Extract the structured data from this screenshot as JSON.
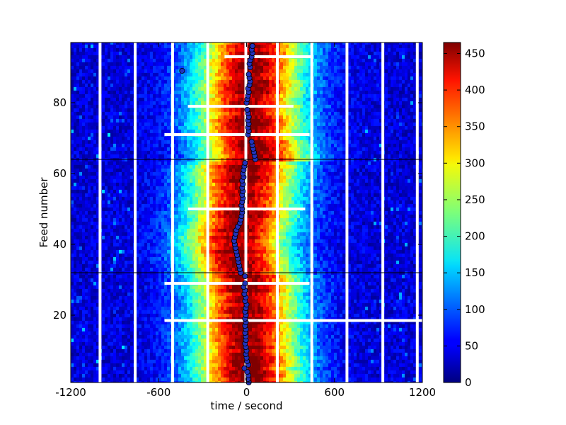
{
  "chart_data": {
    "type": "heatmap",
    "title": "",
    "xlabel": "time / second",
    "ylabel": "Feed number",
    "xlim": [
      -1200,
      1200
    ],
    "ylim": [
      1,
      97
    ],
    "x_ticks": [
      {
        "value": -1200,
        "label": "-1200"
      },
      {
        "value": -600,
        "label": "-600"
      },
      {
        "value": 0,
        "label": "0"
      },
      {
        "value": 600,
        "label": "600"
      },
      {
        "value": 1200,
        "label": "1200"
      }
    ],
    "y_ticks": [
      {
        "value": 20,
        "label": "20"
      },
      {
        "value": 40,
        "label": "40"
      },
      {
        "value": 60,
        "label": "60"
      },
      {
        "value": 80,
        "label": "80"
      }
    ],
    "colorbar": {
      "colormap": "jet",
      "range": [
        0,
        465
      ],
      "ticks": [
        {
          "value": 0,
          "label": "0"
        },
        {
          "value": 50,
          "label": "50"
        },
        {
          "value": 100,
          "label": "100"
        },
        {
          "value": 150,
          "label": "150"
        },
        {
          "value": 200,
          "label": "200"
        },
        {
          "value": 250,
          "label": "250"
        },
        {
          "value": 300,
          "label": "300"
        },
        {
          "value": 350,
          "label": "350"
        },
        {
          "value": 400,
          "label": "400"
        },
        {
          "value": 450,
          "label": "450"
        }
      ]
    },
    "white_gap_times": [
      -1000,
      -760,
      -505,
      -265,
      -5,
      210,
      445,
      685,
      930,
      1165
    ],
    "missing_rows": [
      {
        "feed": 18.5,
        "xfrom": -560,
        "xto": 1200
      },
      {
        "feed": 29,
        "xfrom": -560,
        "xto": 430
      },
      {
        "feed": 50,
        "xfrom": -400,
        "xto": 400
      },
      {
        "feed": 71,
        "xfrom": -560,
        "xto": 430
      },
      {
        "feed": 79,
        "xfrom": -400,
        "xto": 320
      },
      {
        "feed": 93,
        "xfrom": -150,
        "xto": 450
      }
    ],
    "group_boundaries": [
      32,
      64
    ],
    "peak_series": {
      "name": "",
      "color": "#2233bb",
      "points": [
        {
          "feed": 1,
          "time": 15
        },
        {
          "feed": 2,
          "time": 10
        },
        {
          "feed": 3,
          "time": 12
        },
        {
          "feed": 4,
          "time": 5
        },
        {
          "feed": 5,
          "time": -15
        },
        {
          "feed": 6,
          "time": 12
        },
        {
          "feed": 7,
          "time": 3
        },
        {
          "feed": 8,
          "time": 0
        },
        {
          "feed": 9,
          "time": -5
        },
        {
          "feed": 10,
          "time": 0
        },
        {
          "feed": 11,
          "time": -5
        },
        {
          "feed": 12,
          "time": -10
        },
        {
          "feed": 13,
          "time": -5
        },
        {
          "feed": 14,
          "time": -5
        },
        {
          "feed": 15,
          "time": -10
        },
        {
          "feed": 16,
          "time": -5
        },
        {
          "feed": 17,
          "time": -10
        },
        {
          "feed": 18,
          "time": -5
        },
        {
          "feed": 19,
          "time": -10
        },
        {
          "feed": 20,
          "time": -5
        },
        {
          "feed": 21,
          "time": -10
        },
        {
          "feed": 22,
          "time": -5
        },
        {
          "feed": 23,
          "time": 0
        },
        {
          "feed": 24,
          "time": -10
        },
        {
          "feed": 25,
          "time": -5
        },
        {
          "feed": 26,
          "time": -15
        },
        {
          "feed": 27,
          "time": -10
        },
        {
          "feed": 28,
          "time": -20
        },
        {
          "feed": 29,
          "time": -10
        },
        {
          "feed": 31,
          "time": -10
        },
        {
          "feed": 32,
          "time": -40
        },
        {
          "feed": 33,
          "time": -45
        },
        {
          "feed": 34,
          "time": -50
        },
        {
          "feed": 35,
          "time": -55
        },
        {
          "feed": 36,
          "time": -60
        },
        {
          "feed": 37,
          "time": -65
        },
        {
          "feed": 38,
          "time": -70
        },
        {
          "feed": 39,
          "time": -75
        },
        {
          "feed": 40,
          "time": -80
        },
        {
          "feed": 41,
          "time": -85
        },
        {
          "feed": 42,
          "time": -80
        },
        {
          "feed": 43,
          "time": -75
        },
        {
          "feed": 44,
          "time": -70
        },
        {
          "feed": 45,
          "time": -60
        },
        {
          "feed": 46,
          "time": -45
        },
        {
          "feed": 47,
          "time": -40
        },
        {
          "feed": 48,
          "time": -35
        },
        {
          "feed": 49,
          "time": -30
        },
        {
          "feed": 50,
          "time": -30
        },
        {
          "feed": 51,
          "time": -35
        },
        {
          "feed": 52,
          "time": -30
        },
        {
          "feed": 53,
          "time": -25
        },
        {
          "feed": 54,
          "time": -30
        },
        {
          "feed": 55,
          "time": -25
        },
        {
          "feed": 56,
          "time": -30
        },
        {
          "feed": 57,
          "time": -25
        },
        {
          "feed": 58,
          "time": -30
        },
        {
          "feed": 59,
          "time": -20
        },
        {
          "feed": 60,
          "time": -25
        },
        {
          "feed": 61,
          "time": -20
        },
        {
          "feed": 62,
          "time": -15
        },
        {
          "feed": 63,
          "time": -10
        },
        {
          "feed": 64,
          "time": 60
        },
        {
          "feed": 65,
          "time": 55
        },
        {
          "feed": 66,
          "time": 50
        },
        {
          "feed": 67,
          "time": 45
        },
        {
          "feed": 68,
          "time": 40
        },
        {
          "feed": 69,
          "time": 35
        },
        {
          "feed": 71,
          "time": 10
        },
        {
          "feed": 72,
          "time": 15
        },
        {
          "feed": 73,
          "time": 10
        },
        {
          "feed": 74,
          "time": 15
        },
        {
          "feed": 75,
          "time": 10
        },
        {
          "feed": 76,
          "time": 15
        },
        {
          "feed": 77,
          "time": 10
        },
        {
          "feed": 78,
          "time": 5
        },
        {
          "feed": 80,
          "time": 0
        },
        {
          "feed": 81,
          "time": 5
        },
        {
          "feed": 82,
          "time": 10
        },
        {
          "feed": 83,
          "time": 15
        },
        {
          "feed": 84,
          "time": 10
        },
        {
          "feed": 85,
          "time": 20
        },
        {
          "feed": 86,
          "time": 25
        },
        {
          "feed": 87,
          "time": 20
        },
        {
          "feed": 88,
          "time": 15
        },
        {
          "feed": 89,
          "time": -440
        },
        {
          "feed": 90,
          "time": 25
        },
        {
          "feed": 91,
          "time": 20
        },
        {
          "feed": 92,
          "time": 25
        },
        {
          "feed": 93,
          "time": 35
        },
        {
          "feed": 94,
          "time": 40
        },
        {
          "feed": 95,
          "time": 35
        },
        {
          "feed": 96,
          "time": 40
        }
      ]
    }
  }
}
